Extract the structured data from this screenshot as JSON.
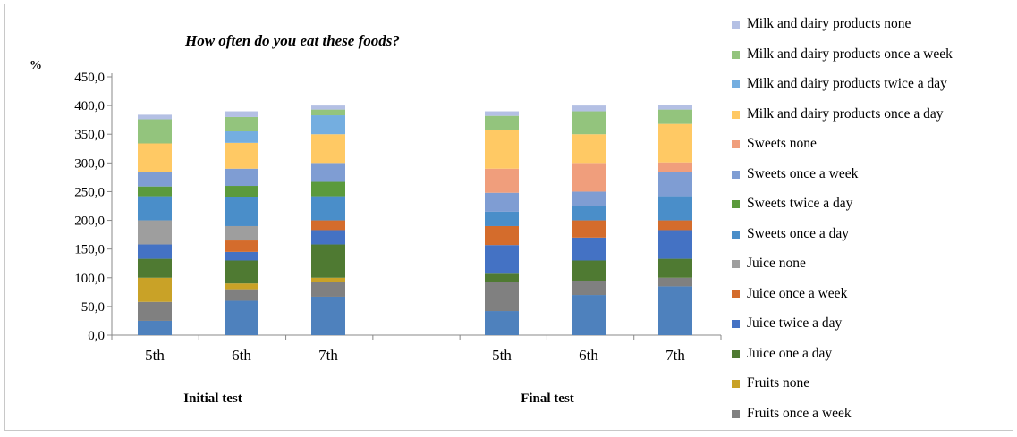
{
  "chart_data": {
    "type": "bar",
    "stacked": true,
    "title": "How often do you eat these foods?",
    "ylabel": "%",
    "ylim": [
      0,
      450
    ],
    "yticks": [
      "0,0",
      "50,0",
      "100,0",
      "150,0",
      "200,0",
      "250,0",
      "300,0",
      "350,0",
      "400,0",
      "450,0"
    ],
    "groups": [
      "Initial test",
      "Final test"
    ],
    "categories": [
      "5th",
      "6th",
      "7th",
      "5th",
      "6th",
      "7th"
    ],
    "legend_position": "right",
    "series": [
      {
        "name": "Fruits once a week",
        "color": "#4e81bd",
        "values": [
          25,
          60,
          67,
          42,
          70,
          85
        ]
      },
      {
        "name": "Fruits none",
        "color": "#808080",
        "values": [
          33,
          20,
          25,
          50,
          25,
          15
        ]
      },
      {
        "name": "Juice one a day",
        "color": "#c9a227",
        "values": [
          42,
          10,
          8,
          0,
          0,
          0
        ]
      },
      {
        "name": "Juice twice a day",
        "color": "#4f7a32",
        "values": [
          33,
          40,
          58,
          15,
          35,
          33
        ]
      },
      {
        "name": "Juice once a week",
        "color": "#4472c4",
        "values": [
          25,
          15,
          25,
          50,
          40,
          50
        ]
      },
      {
        "name": "Juice none",
        "color": "#d46c2c",
        "values": [
          0,
          20,
          17,
          33,
          30,
          17
        ]
      },
      {
        "name": "Sweets once a day",
        "color": "#9e9e9e",
        "values": [
          42,
          25,
          0,
          0,
          0,
          0
        ]
      },
      {
        "name": "Sweets twice a day",
        "color": "#4a8ec9",
        "values": [
          42,
          50,
          42,
          25,
          25,
          42
        ]
      },
      {
        "name": "Sweets once a week",
        "color": "#5b9a3c",
        "values": [
          17,
          20,
          25,
          0,
          0,
          0
        ]
      },
      {
        "name": "Sweets none",
        "color": "#7f9dd3",
        "values": [
          25,
          30,
          33,
          33,
          25,
          42
        ]
      },
      {
        "name": "Milk and dairy products once a day",
        "color": "#f09e7c",
        "values": [
          0,
          0,
          0,
          42,
          50,
          17
        ]
      },
      {
        "name": "Milk and dairy products twice a day",
        "color": "#ffc964",
        "values": [
          50,
          45,
          50,
          67,
          50,
          67
        ]
      },
      {
        "name": "Milk and dairy products once a week",
        "color": "#74aee0",
        "values": [
          0,
          20,
          33,
          0,
          0,
          0
        ]
      },
      {
        "name": "Milk and dairy products none",
        "color": "#93c47d",
        "values": [
          42,
          25,
          10,
          25,
          40,
          25
        ]
      },
      {
        "name": "",
        "color": "#b4c0e4",
        "values": [
          8,
          10,
          7,
          8,
          10,
          8
        ]
      }
    ]
  },
  "legend": [
    {
      "label": "Milk and dairy products none",
      "color": "#b4c0e4"
    },
    {
      "label": "Milk and dairy products once a week",
      "color": "#93c47d"
    },
    {
      "label": "Milk and dairy products twice a day",
      "color": "#74aee0"
    },
    {
      "label": "Milk and dairy products once a day",
      "color": "#ffc964"
    },
    {
      "label": "Sweets none",
      "color": "#f09e7c"
    },
    {
      "label": "Sweets once a week",
      "color": "#7f9dd3"
    },
    {
      "label": "Sweets twice a day",
      "color": "#5b9a3c"
    },
    {
      "label": "Sweets once a day",
      "color": "#4a8ec9"
    },
    {
      "label": "Juice none",
      "color": "#9e9e9e"
    },
    {
      "label": "Juice once a week",
      "color": "#d46c2c"
    },
    {
      "label": "Juice twice a day",
      "color": "#4472c4"
    },
    {
      "label": "Juice one a day",
      "color": "#4f7a32"
    },
    {
      "label": "Fruits none",
      "color": "#c9a227"
    },
    {
      "label": "Fruits once a week",
      "color": "#808080"
    }
  ]
}
